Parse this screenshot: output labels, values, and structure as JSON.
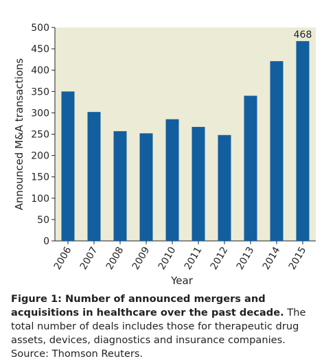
{
  "chart_data": {
    "type": "bar",
    "categories": [
      "2006",
      "2007",
      "2008",
      "2009",
      "2010",
      "2011",
      "2012",
      "2013",
      "2014",
      "2015"
    ],
    "values": [
      350,
      302,
      257,
      252,
      285,
      267,
      248,
      340,
      421,
      468
    ],
    "xlabel": "Year",
    "ylabel": "Announced M&A transactions",
    "ylim": [
      0,
      500
    ],
    "yticks": [
      0,
      50,
      100,
      150,
      200,
      250,
      300,
      350,
      400,
      450,
      500
    ],
    "data_labels": [
      {
        "category": "2015",
        "text": "468"
      }
    ],
    "grid": false,
    "plot_background": "#ecebd6",
    "bar_color": "#135e9e"
  },
  "caption": {
    "bold": "Figure 1: Number of announced mergers and acquisitions in healthcare over the past decade.",
    "text": " The total number of deals includes those for therapeutic drug assets, devices, diagnostics and insurance companies. Source: Thomson Reuters."
  }
}
